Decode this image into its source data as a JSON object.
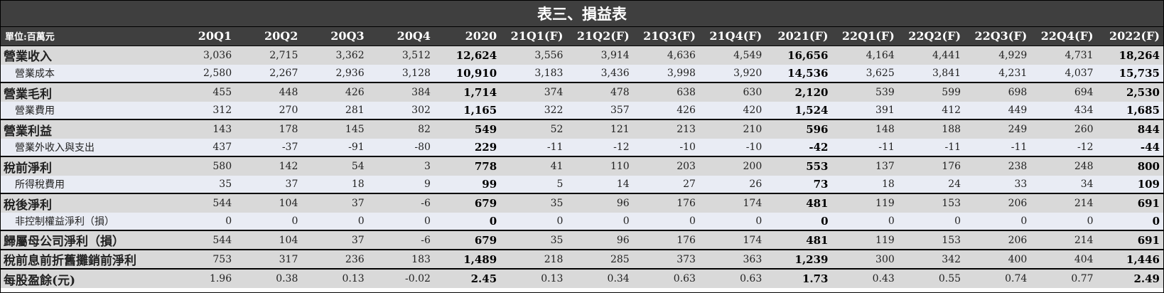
{
  "title": "表三、損益表",
  "unit_label": "單位:百萬元",
  "columns": [
    "20Q1",
    "20Q2",
    "20Q3",
    "20Q4",
    "2020",
    "21Q1(F)",
    "21Q2(F)",
    "21Q3(F)",
    "21Q4(F)",
    "2021(F)",
    "22Q1(F)",
    "22Q2(F)",
    "22Q3(F)",
    "22Q4(F)",
    "2022(F)"
  ],
  "annual_column_indexes": [
    4,
    9,
    14
  ],
  "rows": [
    {
      "label": "營業收入",
      "kind": "major",
      "values": [
        "3,036",
        "2,715",
        "3,362",
        "3,512",
        "12,624",
        "3,556",
        "3,914",
        "4,636",
        "4,549",
        "16,656",
        "4,164",
        "4,441",
        "4,929",
        "4,731",
        "18,264"
      ]
    },
    {
      "label": "營業成本",
      "kind": "minor",
      "values": [
        "2,580",
        "2,267",
        "2,936",
        "3,128",
        "10,910",
        "3,183",
        "3,436",
        "3,998",
        "3,920",
        "14,536",
        "3,625",
        "3,841",
        "4,231",
        "4,037",
        "15,735"
      ]
    },
    {
      "label": "營業毛利",
      "kind": "major",
      "values": [
        "455",
        "448",
        "426",
        "384",
        "1,714",
        "374",
        "478",
        "638",
        "630",
        "2,120",
        "539",
        "599",
        "698",
        "694",
        "2,530"
      ]
    },
    {
      "label": "營業費用",
      "kind": "minor",
      "values": [
        "312",
        "270",
        "281",
        "302",
        "1,165",
        "322",
        "357",
        "426",
        "420",
        "1,524",
        "391",
        "412",
        "449",
        "434",
        "1,685"
      ]
    },
    {
      "label": "營業利益",
      "kind": "major",
      "values": [
        "143",
        "178",
        "145",
        "82",
        "549",
        "52",
        "121",
        "213",
        "210",
        "596",
        "148",
        "188",
        "249",
        "260",
        "844"
      ]
    },
    {
      "label": "營業外收入與支出",
      "kind": "minor",
      "values": [
        "437",
        "-37",
        "-91",
        "-80",
        "229",
        "-11",
        "-12",
        "-10",
        "-10",
        "-42",
        "-11",
        "-11",
        "-11",
        "-12",
        "-44"
      ]
    },
    {
      "label": "稅前淨利",
      "kind": "major",
      "values": [
        "580",
        "142",
        "54",
        "3",
        "778",
        "41",
        "110",
        "203",
        "200",
        "553",
        "137",
        "176",
        "238",
        "248",
        "800"
      ]
    },
    {
      "label": "所得稅費用",
      "kind": "minor",
      "values": [
        "35",
        "37",
        "18",
        "9",
        "99",
        "5",
        "14",
        "27",
        "26",
        "73",
        "18",
        "24",
        "33",
        "34",
        "109"
      ]
    },
    {
      "label": "稅後淨利",
      "kind": "major",
      "values": [
        "544",
        "104",
        "37",
        "-6",
        "679",
        "35",
        "96",
        "176",
        "174",
        "481",
        "119",
        "153",
        "206",
        "214",
        "691"
      ]
    },
    {
      "label": "非控制權益淨利（損）",
      "kind": "minor",
      "values": [
        "0",
        "0",
        "0",
        "0",
        "0",
        "0",
        "0",
        "0",
        "0",
        "0",
        "0",
        "0",
        "0",
        "0",
        "0"
      ]
    },
    {
      "label": "歸屬母公司淨利（損）",
      "kind": "major",
      "values": [
        "544",
        "104",
        "37",
        "-6",
        "679",
        "35",
        "96",
        "176",
        "174",
        "481",
        "119",
        "153",
        "206",
        "214",
        "691"
      ]
    },
    {
      "label": "稅前息前折舊攤銷前淨利",
      "kind": "major",
      "values": [
        "753",
        "317",
        "236",
        "183",
        "1,489",
        "218",
        "285",
        "373",
        "363",
        "1,239",
        "300",
        "342",
        "400",
        "404",
        "1,446"
      ]
    },
    {
      "label": "每股盈餘(元)",
      "kind": "major",
      "values": [
        "1.96",
        "0.38",
        "0.13",
        "-0.02",
        "2.45",
        "0.13",
        "0.34",
        "0.63",
        "0.63",
        "1.73",
        "0.43",
        "0.55",
        "0.74",
        "0.77",
        "2.49"
      ]
    }
  ]
}
